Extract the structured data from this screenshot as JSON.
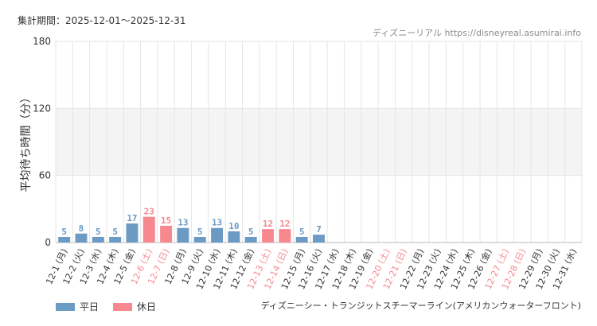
{
  "header": {
    "period": "集計期間：2025-12-01〜2025-12-31",
    "source": "ディズニーリアル https://disneyreal.asumirai.info"
  },
  "footer": {
    "attraction": "ディズニーシー・トランジットスチーマーライン(アメリカンウォーターフロント)"
  },
  "colors": {
    "weekday": "#6b9ac4",
    "holiday": "#f7888f",
    "band": "#f4f4f4",
    "grid": "#e6e6e6"
  },
  "chart_data": {
    "type": "bar",
    "ylabel": "平均待ち時間（分）",
    "ylim": [
      0,
      180
    ],
    "yticks": [
      0,
      60,
      120,
      180
    ],
    "band": [
      60,
      120
    ],
    "legend": [
      {
        "key": "weekday",
        "label": "平日"
      },
      {
        "key": "holiday",
        "label": "休日"
      }
    ],
    "categories": [
      "12-1 (月)",
      "12-2 (火)",
      "12-3 (水)",
      "12-4 (木)",
      "12-5 (金)",
      "12-6 (土)",
      "12-7 (日)",
      "12-8 (月)",
      "12-9 (火)",
      "12-10 (水)",
      "12-11 (木)",
      "12-12 (金)",
      "12-13 (土)",
      "12-14 (日)",
      "12-15 (月)",
      "12-16 (火)",
      "12-17 (水)",
      "12-18 (木)",
      "12-19 (金)",
      "12-20 (土)",
      "12-21 (日)",
      "12-22 (月)",
      "12-23 (火)",
      "12-24 (水)",
      "12-25 (木)",
      "12-26 (金)",
      "12-27 (土)",
      "12-28 (日)",
      "12-29 (月)",
      "12-30 (火)",
      "12-31 (水)"
    ],
    "values": [
      5,
      8,
      5,
      5,
      17,
      23,
      15,
      13,
      5,
      13,
      10,
      5,
      12,
      12,
      5,
      7,
      null,
      null,
      null,
      null,
      null,
      null,
      null,
      null,
      null,
      null,
      null,
      null,
      null,
      null,
      null
    ],
    "holiday": [
      false,
      false,
      false,
      false,
      false,
      true,
      true,
      false,
      false,
      false,
      false,
      false,
      true,
      true,
      false,
      false,
      false,
      false,
      false,
      true,
      true,
      false,
      false,
      false,
      false,
      false,
      true,
      true,
      false,
      false,
      false
    ]
  }
}
